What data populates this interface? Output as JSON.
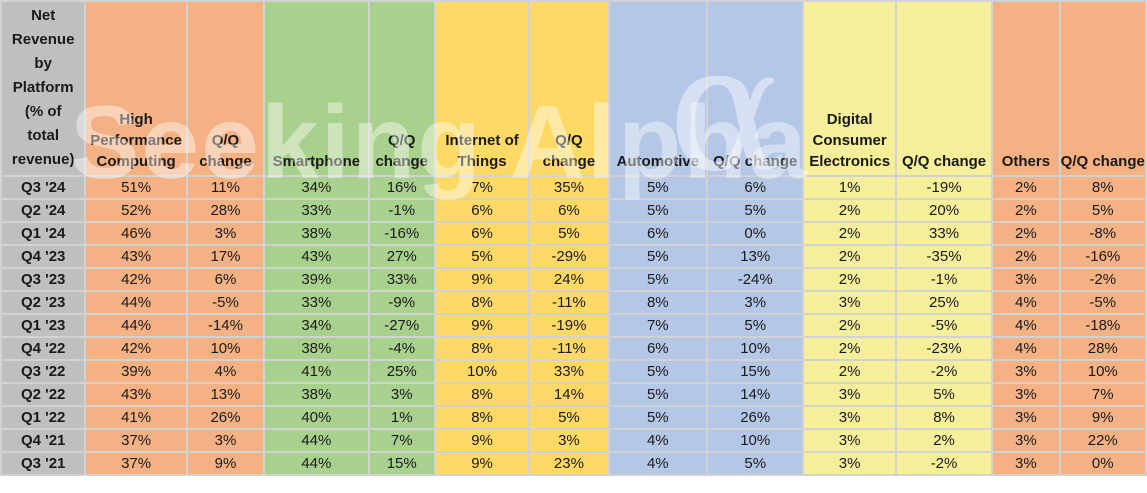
{
  "chart_data": {
    "type": "table",
    "title": "Net Revenue by Platform (% of total revenue)",
    "corner_lines": [
      "Net",
      "Revenue",
      "by",
      "Platform",
      "(% of",
      "total",
      "revenue)"
    ],
    "column_groups": [
      {
        "label": "High Performance Computing",
        "color_key": "salmon"
      },
      {
        "label": "Q/Q change",
        "color_key": "salmon"
      },
      {
        "label": "Smartphone",
        "color_key": "green"
      },
      {
        "label": "Q/Q change",
        "color_key": "green"
      },
      {
        "label": "Internet of Things",
        "color_key": "gold"
      },
      {
        "label": "Q/Q change",
        "color_key": "gold"
      },
      {
        "label": "Automotive",
        "color_key": "blue"
      },
      {
        "label": "Q/Q change",
        "color_key": "blue"
      },
      {
        "label": "Digital Consumer Electronics",
        "color_key": "pale"
      },
      {
        "label": "Q/Q change",
        "color_key": "pale"
      },
      {
        "label": "Others",
        "color_key": "salmon"
      },
      {
        "label": "Q/Q change",
        "color_key": "salmon"
      }
    ],
    "rows": [
      {
        "quarter": "Q3 '24",
        "values": [
          "51%",
          "11%",
          "34%",
          "16%",
          "7%",
          "35%",
          "5%",
          "6%",
          "1%",
          "-19%",
          "2%",
          "8%"
        ]
      },
      {
        "quarter": "Q2 '24",
        "values": [
          "52%",
          "28%",
          "33%",
          "-1%",
          "6%",
          "6%",
          "5%",
          "5%",
          "2%",
          "20%",
          "2%",
          "5%"
        ]
      },
      {
        "quarter": "Q1 '24",
        "values": [
          "46%",
          "3%",
          "38%",
          "-16%",
          "6%",
          "5%",
          "6%",
          "0%",
          "2%",
          "33%",
          "2%",
          "-8%"
        ]
      },
      {
        "quarter": "Q4 '23",
        "values": [
          "43%",
          "17%",
          "43%",
          "27%",
          "5%",
          "-29%",
          "5%",
          "13%",
          "2%",
          "-35%",
          "2%",
          "-16%"
        ]
      },
      {
        "quarter": "Q3 '23",
        "values": [
          "42%",
          "6%",
          "39%",
          "33%",
          "9%",
          "24%",
          "5%",
          "-24%",
          "2%",
          "-1%",
          "3%",
          "-2%"
        ]
      },
      {
        "quarter": "Q2 '23",
        "values": [
          "44%",
          "-5%",
          "33%",
          "-9%",
          "8%",
          "-11%",
          "8%",
          "3%",
          "3%",
          "25%",
          "4%",
          "-5%"
        ]
      },
      {
        "quarter": "Q1 '23",
        "values": [
          "44%",
          "-14%",
          "34%",
          "-27%",
          "9%",
          "-19%",
          "7%",
          "5%",
          "2%",
          "-5%",
          "4%",
          "-18%"
        ]
      },
      {
        "quarter": "Q4 '22",
        "values": [
          "42%",
          "10%",
          "38%",
          "-4%",
          "8%",
          "-11%",
          "6%",
          "10%",
          "2%",
          "-23%",
          "4%",
          "28%"
        ]
      },
      {
        "quarter": "Q3 '22",
        "values": [
          "39%",
          "4%",
          "41%",
          "25%",
          "10%",
          "33%",
          "5%",
          "15%",
          "2%",
          "-2%",
          "3%",
          "10%"
        ]
      },
      {
        "quarter": "Q2 '22",
        "values": [
          "43%",
          "13%",
          "38%",
          "3%",
          "8%",
          "14%",
          "5%",
          "14%",
          "3%",
          "5%",
          "3%",
          "7%"
        ]
      },
      {
        "quarter": "Q1 '22",
        "values": [
          "41%",
          "26%",
          "40%",
          "1%",
          "8%",
          "5%",
          "5%",
          "26%",
          "3%",
          "8%",
          "3%",
          "9%"
        ]
      },
      {
        "quarter": "Q4 '21",
        "values": [
          "37%",
          "3%",
          "44%",
          "7%",
          "9%",
          "3%",
          "4%",
          "10%",
          "3%",
          "2%",
          "3%",
          "22%"
        ]
      },
      {
        "quarter": "Q3 '21",
        "values": [
          "37%",
          "9%",
          "44%",
          "15%",
          "9%",
          "23%",
          "4%",
          "5%",
          "3%",
          "-2%",
          "3%",
          "0%"
        ]
      }
    ]
  },
  "watermark": {
    "text": "Seeking Alpha",
    "alpha_glyph": "α"
  },
  "colors": {
    "header_gray": "#BFBFBF",
    "salmon": "#F4B183",
    "green": "#A9D18E",
    "gold": "#FFD966",
    "blue": "#B4C7E7",
    "pale_yellow": "#F5EE9B",
    "gridline": "#D2D2D2",
    "text": "#1A1A1A"
  }
}
